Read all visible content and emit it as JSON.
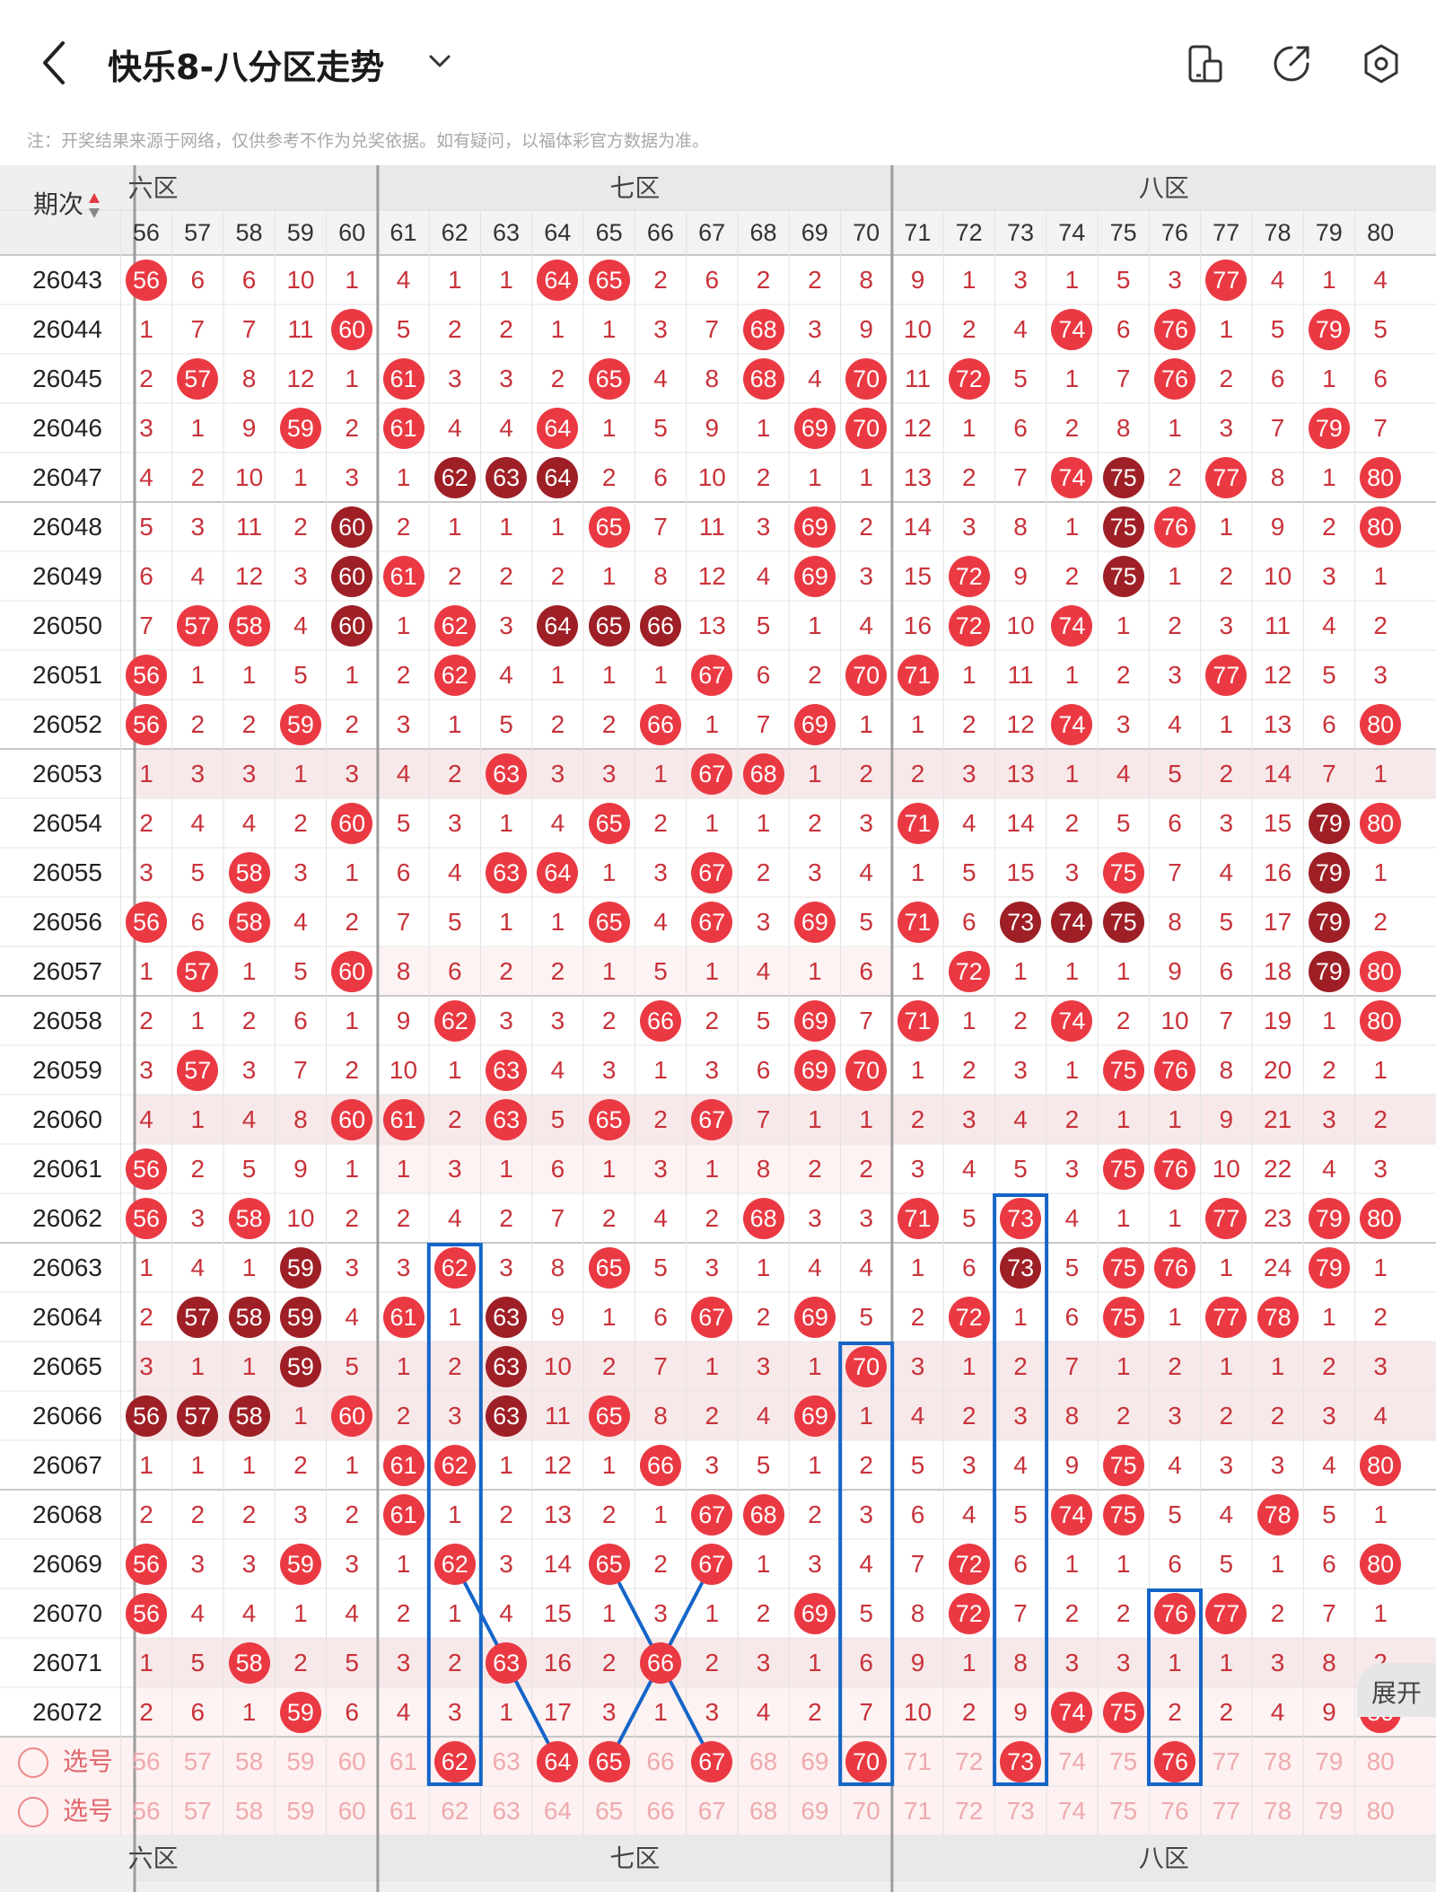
{
  "header": {
    "title": "快乐8-八分区走势",
    "note": "注：开奖结果来源于网络，仅供参考不作为兑奖依据。如有疑问，以福体彩官方数据为准。",
    "icons": [
      "device-icon",
      "share-icon",
      "settings-icon"
    ]
  },
  "table": {
    "issue_header": "期次",
    "zones": [
      "六区",
      "七区",
      "八区"
    ],
    "columns": [
      56,
      57,
      58,
      59,
      60,
      61,
      62,
      63,
      64,
      65,
      66,
      67,
      68,
      69,
      70,
      71,
      72,
      73,
      74,
      75,
      76,
      77,
      78,
      79,
      80
    ],
    "rows": [
      {
        "issue": "26043",
        "cells": [
          "56",
          "6",
          "6",
          "10",
          "1",
          "4",
          "1",
          "1",
          "64",
          "65",
          "2",
          "6",
          "2",
          "2",
          "8",
          "9",
          "1",
          "3",
          "1",
          "5",
          "3",
          "77",
          "4",
          "1",
          "4"
        ]
      },
      {
        "issue": "26044",
        "cells": [
          "1",
          "7",
          "7",
          "11",
          "60",
          "5",
          "2",
          "2",
          "1",
          "1",
          "3",
          "7",
          "68",
          "3",
          "9",
          "10",
          "2",
          "4",
          "74",
          "6",
          "76",
          "1",
          "5",
          "79",
          "5"
        ]
      },
      {
        "issue": "26045",
        "cells": [
          "2",
          "57",
          "8",
          "12",
          "1",
          "61",
          "3",
          "3",
          "2",
          "65",
          "4",
          "8",
          "68",
          "4",
          "70",
          "11",
          "72",
          "5",
          "1",
          "7",
          "76",
          "2",
          "6",
          "1",
          "6"
        ]
      },
      {
        "issue": "26046",
        "cells": [
          "3",
          "1",
          "9",
          "59",
          "2",
          "61",
          "4",
          "4",
          "64",
          "1",
          "5",
          "9",
          "1",
          "69",
          "70",
          "12",
          "1",
          "6",
          "2",
          "8",
          "1",
          "3",
          "7",
          "79",
          "7"
        ]
      },
      {
        "issue": "26047",
        "cells": [
          "4",
          "2",
          "10",
          "1",
          "3",
          "1",
          "62",
          "63",
          "64",
          "2",
          "6",
          "10",
          "2",
          "1",
          "1",
          "13",
          "2",
          "7",
          "74",
          "75",
          "2",
          "77",
          "8",
          "1",
          "80"
        ]
      },
      {
        "issue": "26048",
        "cells": [
          "5",
          "3",
          "11",
          "2",
          "60",
          "2",
          "1",
          "1",
          "1",
          "65",
          "7",
          "11",
          "3",
          "69",
          "2",
          "14",
          "3",
          "8",
          "1",
          "75",
          "76",
          "1",
          "9",
          "2",
          "80"
        ]
      },
      {
        "issue": "26049",
        "cells": [
          "6",
          "4",
          "12",
          "3",
          "60",
          "61",
          "2",
          "2",
          "2",
          "1",
          "8",
          "12",
          "4",
          "69",
          "3",
          "15",
          "72",
          "9",
          "2",
          "75",
          "1",
          "2",
          "10",
          "3",
          "1"
        ]
      },
      {
        "issue": "26050",
        "cells": [
          "7",
          "57",
          "58",
          "4",
          "60",
          "1",
          "62",
          "3",
          "64",
          "65",
          "66",
          "13",
          "5",
          "1",
          "4",
          "16",
          "72",
          "10",
          "74",
          "1",
          "2",
          "3",
          "11",
          "4",
          "2"
        ]
      },
      {
        "issue": "26051",
        "cells": [
          "56",
          "1",
          "1",
          "5",
          "1",
          "2",
          "62",
          "4",
          "1",
          "1",
          "1",
          "67",
          "6",
          "2",
          "70",
          "71",
          "1",
          "11",
          "1",
          "2",
          "3",
          "77",
          "12",
          "5",
          "3"
        ]
      },
      {
        "issue": "26052",
        "cells": [
          "56",
          "2",
          "2",
          "59",
          "2",
          "3",
          "1",
          "5",
          "2",
          "2",
          "66",
          "1",
          "7",
          "69",
          "1",
          "1",
          "2",
          "12",
          "74",
          "3",
          "4",
          "1",
          "13",
          "6",
          "80"
        ]
      },
      {
        "issue": "26053",
        "cells": [
          "1",
          "3",
          "3",
          "1",
          "3",
          "4",
          "2",
          "63",
          "3",
          "3",
          "1",
          "67",
          "68",
          "1",
          "2",
          "2",
          "3",
          "13",
          "1",
          "4",
          "5",
          "2",
          "14",
          "7",
          "1"
        ]
      },
      {
        "issue": "26054",
        "cells": [
          "2",
          "4",
          "4",
          "2",
          "60",
          "5",
          "3",
          "1",
          "4",
          "65",
          "2",
          "1",
          "1",
          "2",
          "3",
          "71",
          "4",
          "14",
          "2",
          "5",
          "6",
          "3",
          "15",
          "79",
          "80"
        ]
      },
      {
        "issue": "26055",
        "cells": [
          "3",
          "5",
          "58",
          "3",
          "1",
          "6",
          "4",
          "63",
          "64",
          "1",
          "3",
          "67",
          "2",
          "3",
          "4",
          "1",
          "5",
          "15",
          "3",
          "75",
          "7",
          "4",
          "16",
          "79",
          "1"
        ]
      },
      {
        "issue": "26056",
        "cells": [
          "56",
          "6",
          "58",
          "4",
          "2",
          "7",
          "5",
          "1",
          "1",
          "65",
          "4",
          "67",
          "3",
          "69",
          "5",
          "71",
          "6",
          "73",
          "74",
          "75",
          "8",
          "5",
          "17",
          "79",
          "2"
        ]
      },
      {
        "issue": "26057",
        "cells": [
          "1",
          "57",
          "1",
          "5",
          "60",
          "8",
          "6",
          "2",
          "2",
          "1",
          "5",
          "1",
          "4",
          "1",
          "6",
          "1",
          "72",
          "1",
          "1",
          "1",
          "9",
          "6",
          "18",
          "79",
          "80"
        ]
      },
      {
        "issue": "26058",
        "cells": [
          "2",
          "1",
          "2",
          "6",
          "1",
          "9",
          "62",
          "3",
          "3",
          "2",
          "66",
          "2",
          "5",
          "69",
          "7",
          "71",
          "1",
          "2",
          "74",
          "2",
          "10",
          "7",
          "19",
          "1",
          "80"
        ]
      },
      {
        "issue": "26059",
        "cells": [
          "3",
          "57",
          "3",
          "7",
          "2",
          "10",
          "1",
          "63",
          "4",
          "3",
          "1",
          "3",
          "6",
          "69",
          "70",
          "1",
          "2",
          "3",
          "1",
          "75",
          "76",
          "8",
          "20",
          "2",
          "1"
        ]
      },
      {
        "issue": "26060",
        "cells": [
          "4",
          "1",
          "4",
          "8",
          "60",
          "61",
          "2",
          "63",
          "5",
          "65",
          "2",
          "67",
          "7",
          "1",
          "1",
          "2",
          "3",
          "4",
          "2",
          "1",
          "1",
          "9",
          "21",
          "3",
          "2"
        ]
      },
      {
        "issue": "26061",
        "cells": [
          "56",
          "2",
          "5",
          "9",
          "1",
          "1",
          "3",
          "1",
          "6",
          "1",
          "3",
          "1",
          "8",
          "2",
          "2",
          "3",
          "4",
          "5",
          "3",
          "75",
          "76",
          "10",
          "22",
          "4",
          "3"
        ]
      },
      {
        "issue": "26062",
        "cells": [
          "56",
          "3",
          "58",
          "10",
          "2",
          "2",
          "4",
          "2",
          "7",
          "2",
          "4",
          "2",
          "68",
          "3",
          "3",
          "71",
          "5",
          "73",
          "4",
          "1",
          "1",
          "77",
          "23",
          "79",
          "80"
        ]
      },
      {
        "issue": "26063",
        "cells": [
          "1",
          "4",
          "1",
          "59",
          "3",
          "3",
          "62",
          "3",
          "8",
          "65",
          "5",
          "3",
          "1",
          "4",
          "4",
          "1",
          "6",
          "73",
          "5",
          "75",
          "76",
          "1",
          "24",
          "79",
          "1"
        ]
      },
      {
        "issue": "26064",
        "cells": [
          "2",
          "57",
          "58",
          "59",
          "4",
          "61",
          "1",
          "63",
          "9",
          "1",
          "6",
          "67",
          "2",
          "69",
          "5",
          "2",
          "72",
          "1",
          "6",
          "75",
          "1",
          "77",
          "78",
          "1",
          "2"
        ]
      },
      {
        "issue": "26065",
        "cells": [
          "3",
          "1",
          "1",
          "59",
          "5",
          "1",
          "2",
          "63",
          "10",
          "2",
          "7",
          "1",
          "3",
          "1",
          "70",
          "3",
          "1",
          "2",
          "7",
          "1",
          "2",
          "1",
          "1",
          "2",
          "3"
        ]
      },
      {
        "issue": "26066",
        "cells": [
          "56",
          "57",
          "58",
          "1",
          "60",
          "2",
          "3",
          "63",
          "11",
          "65",
          "8",
          "2",
          "4",
          "69",
          "1",
          "4",
          "2",
          "3",
          "8",
          "2",
          "3",
          "2",
          "2",
          "3",
          "4"
        ]
      },
      {
        "issue": "26067",
        "cells": [
          "1",
          "1",
          "1",
          "2",
          "1",
          "61",
          "62",
          "1",
          "12",
          "1",
          "66",
          "3",
          "5",
          "1",
          "2",
          "5",
          "3",
          "4",
          "9",
          "75",
          "4",
          "3",
          "3",
          "4",
          "80"
        ]
      },
      {
        "issue": "26068",
        "cells": [
          "2",
          "2",
          "2",
          "3",
          "2",
          "61",
          "1",
          "2",
          "13",
          "2",
          "1",
          "67",
          "68",
          "2",
          "3",
          "6",
          "4",
          "5",
          "74",
          "75",
          "5",
          "4",
          "78",
          "5",
          "1"
        ]
      },
      {
        "issue": "26069",
        "cells": [
          "56",
          "3",
          "3",
          "59",
          "3",
          "1",
          "62",
          "3",
          "14",
          "65",
          "2",
          "67",
          "1",
          "3",
          "4",
          "7",
          "72",
          "6",
          "1",
          "1",
          "6",
          "5",
          "1",
          "6",
          "80"
        ]
      },
      {
        "issue": "26070",
        "cells": [
          "56",
          "4",
          "4",
          "1",
          "4",
          "2",
          "1",
          "4",
          "15",
          "1",
          "3",
          "1",
          "2",
          "69",
          "5",
          "8",
          "72",
          "7",
          "2",
          "2",
          "76",
          "77",
          "2",
          "7",
          "1"
        ]
      },
      {
        "issue": "26071",
        "cells": [
          "1",
          "5",
          "58",
          "2",
          "5",
          "3",
          "2",
          "63",
          "16",
          "2",
          "66",
          "2",
          "3",
          "1",
          "6",
          "9",
          "1",
          "8",
          "3",
          "3",
          "1",
          "1",
          "3",
          "8",
          "2"
        ]
      },
      {
        "issue": "26072",
        "cells": [
          "2",
          "6",
          "1",
          "59",
          "6",
          "4",
          "3",
          "1",
          "17",
          "3",
          "1",
          "3",
          "4",
          "2",
          "7",
          "10",
          "2",
          "9",
          "74",
          "75",
          "2",
          "2",
          "4",
          "9",
          "80"
        ]
      }
    ],
    "select_label": "选号",
    "selected_numbers": [
      62,
      64,
      65,
      67,
      70,
      73,
      76
    ],
    "expand_label": "展开"
  }
}
